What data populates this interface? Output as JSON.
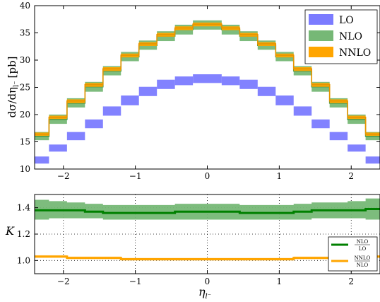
{
  "chart_data": [
    {
      "type": "histogram-band",
      "ylabel": "dσ/dη",
      "ylabel_sub": "l⁻",
      "ylabel_unit": "[pb]",
      "xlim": [
        -2.4,
        2.4
      ],
      "ylim": [
        10,
        40
      ],
      "xticks": [
        -2,
        -1,
        0,
        1,
        2
      ],
      "yticks": [
        10,
        15,
        20,
        25,
        30,
        35,
        40
      ],
      "bin_edges": [
        -2.4,
        -2.2,
        -1.95,
        -1.7,
        -1.45,
        -1.2,
        -0.95,
        -0.7,
        -0.45,
        -0.2,
        0.0,
        0.2,
        0.45,
        0.7,
        0.95,
        1.2,
        1.45,
        1.7,
        1.95,
        2.2,
        2.4
      ],
      "legend_position": "top-right",
      "series": [
        {
          "name": "LO",
          "color": "#7b7bff",
          "low": [
            11.0,
            13.2,
            15.3,
            17.5,
            19.8,
            21.7,
            23.4,
            24.7,
            25.4,
            25.8,
            25.8,
            25.4,
            24.7,
            23.4,
            21.7,
            19.8,
            17.5,
            15.3,
            13.2,
            11.0
          ],
          "high": [
            12.3,
            14.5,
            16.8,
            19.1,
            21.5,
            23.5,
            25.1,
            26.4,
            27.0,
            27.4,
            27.4,
            27.0,
            26.4,
            25.1,
            23.5,
            21.5,
            19.1,
            16.8,
            14.5,
            12.3
          ],
          "central": [
            11.6,
            13.8,
            16.0,
            18.3,
            20.6,
            22.6,
            24.3,
            25.5,
            26.2,
            26.6,
            26.6,
            26.2,
            25.5,
            24.3,
            22.6,
            20.6,
            18.3,
            16.0,
            13.8,
            11.6
          ]
        },
        {
          "name": "NLO",
          "color": "#76b876",
          "low": [
            15.3,
            18.3,
            21.3,
            24.2,
            27.2,
            29.8,
            31.9,
            33.5,
            34.7,
            35.6,
            35.6,
            34.7,
            33.5,
            31.9,
            29.8,
            27.2,
            24.2,
            21.3,
            18.3,
            15.3
          ],
          "high": [
            16.8,
            20.0,
            23.0,
            26.0,
            28.9,
            31.5,
            33.6,
            35.3,
            36.5,
            37.3,
            37.3,
            36.5,
            35.3,
            33.6,
            31.5,
            28.9,
            26.0,
            23.0,
            20.0,
            16.8
          ],
          "central": [
            16.0,
            19.1,
            22.1,
            25.1,
            28.0,
            30.6,
            32.7,
            34.4,
            35.6,
            36.4,
            36.4,
            35.6,
            34.4,
            32.7,
            30.6,
            28.0,
            25.1,
            22.1,
            19.1,
            16.0
          ]
        },
        {
          "name": "NNLO",
          "color": "#ffa500",
          "low": [
            16.1,
            19.2,
            22.1,
            25.1,
            28.0,
            30.5,
            32.6,
            34.3,
            35.5,
            36.2,
            36.2,
            35.5,
            34.3,
            32.6,
            30.5,
            28.0,
            25.1,
            22.1,
            19.2,
            16.1
          ],
          "high": [
            16.7,
            19.8,
            22.8,
            25.8,
            28.7,
            31.2,
            33.3,
            35.0,
            36.2,
            36.9,
            36.9,
            36.2,
            35.0,
            33.3,
            31.2,
            28.7,
            25.8,
            22.8,
            19.8,
            16.7
          ],
          "central": [
            16.4,
            19.5,
            22.5,
            25.5,
            28.4,
            30.9,
            33.0,
            34.7,
            35.9,
            36.6,
            36.6,
            35.9,
            34.7,
            33.0,
            30.9,
            28.4,
            25.5,
            22.5,
            19.5,
            16.4
          ]
        }
      ]
    },
    {
      "type": "ratio-band",
      "xlabel": "η",
      "xlabel_sub": "l⁻",
      "ylabel": "K",
      "xlim": [
        -2.4,
        2.4
      ],
      "ylim": [
        0.9,
        1.5
      ],
      "xticks": [
        -2,
        -1,
        0,
        1,
        2
      ],
      "yticks": [
        1.0,
        1.2,
        1.4
      ],
      "grid": true,
      "legend_position": "bottom-right",
      "bin_edges": [
        -2.4,
        -2.2,
        -1.95,
        -1.7,
        -1.45,
        -1.2,
        -0.95,
        -0.7,
        -0.45,
        -0.2,
        0.0,
        0.2,
        0.45,
        0.7,
        0.95,
        1.2,
        1.45,
        1.7,
        1.95,
        2.2,
        2.4
      ],
      "series": [
        {
          "name_num": "NLO",
          "name_den": "LO",
          "color": "#008000",
          "band_color": "#76b876",
          "central": [
            1.38,
            1.38,
            1.38,
            1.37,
            1.36,
            1.36,
            1.36,
            1.36,
            1.37,
            1.37,
            1.37,
            1.37,
            1.36,
            1.36,
            1.36,
            1.37,
            1.38,
            1.38,
            1.38,
            1.39
          ],
          "low": [
            1.31,
            1.32,
            1.32,
            1.32,
            1.31,
            1.31,
            1.31,
            1.31,
            1.31,
            1.31,
            1.31,
            1.31,
            1.31,
            1.31,
            1.31,
            1.31,
            1.32,
            1.32,
            1.32,
            1.31
          ],
          "high": [
            1.46,
            1.45,
            1.44,
            1.43,
            1.42,
            1.42,
            1.42,
            1.42,
            1.43,
            1.43,
            1.43,
            1.43,
            1.42,
            1.42,
            1.42,
            1.43,
            1.44,
            1.44,
            1.45,
            1.47
          ]
        },
        {
          "name_num": "NNLO",
          "name_den": "NLO",
          "color": "#ffa500",
          "band_color": "#ffd27f",
          "central": [
            1.03,
            1.03,
            1.02,
            1.02,
            1.02,
            1.01,
            1.01,
            1.01,
            1.01,
            1.01,
            1.01,
            1.01,
            1.01,
            1.01,
            1.01,
            1.02,
            1.02,
            1.02,
            1.03,
            1.03
          ],
          "low": [
            1.02,
            1.02,
            1.01,
            1.01,
            1.01,
            1.0,
            1.0,
            1.0,
            1.0,
            1.0,
            1.0,
            1.0,
            1.0,
            1.0,
            1.0,
            1.01,
            1.01,
            1.01,
            1.02,
            1.02
          ],
          "high": [
            1.04,
            1.04,
            1.03,
            1.03,
            1.03,
            1.02,
            1.02,
            1.02,
            1.02,
            1.02,
            1.02,
            1.02,
            1.02,
            1.02,
            1.02,
            1.03,
            1.03,
            1.03,
            1.04,
            1.04
          ]
        }
      ]
    }
  ]
}
